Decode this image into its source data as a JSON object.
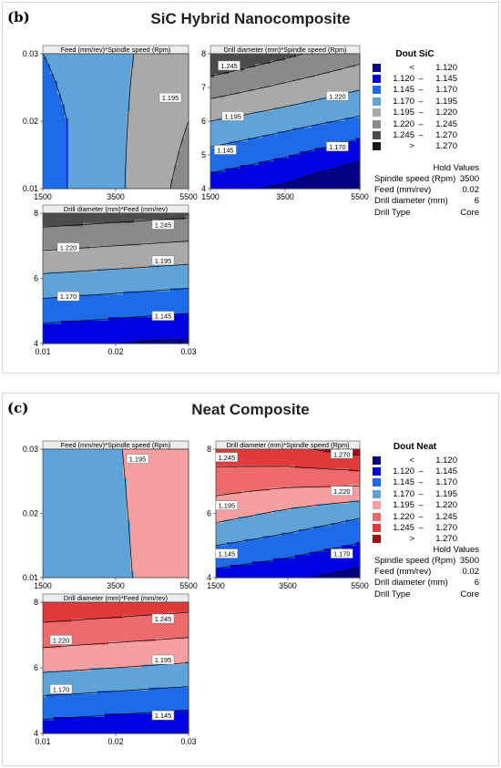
{
  "panels": [
    {
      "letter": "(b)",
      "title": "SiC Hybrid Nanocomposite",
      "legend": {
        "title": "Dout SiC",
        "rows": [
          {
            "lo": "<",
            "hi": "1.120",
            "color": "#000080"
          },
          {
            "lo": "1.120",
            "hi": "1.145",
            "color": "#0000e0"
          },
          {
            "lo": "1.145",
            "hi": "1.170",
            "color": "#1e6be8"
          },
          {
            "lo": "1.170",
            "hi": "1.195",
            "color": "#5fa3d9"
          },
          {
            "lo": "1.195",
            "hi": "1.220",
            "color": "#a9a9a9"
          },
          {
            "lo": "1.220",
            "hi": "1.245",
            "color": "#8a8a8a"
          },
          {
            "lo": "1.245",
            "hi": "1.270",
            "color": "#4d4d4d"
          },
          {
            "lo": ">",
            "hi": "1.270",
            "color": "#1a1a1a"
          }
        ]
      },
      "hold": {
        "title": "Hold Values",
        "rows": [
          {
            "label": "Spindle speed (Rpm)",
            "value": "3500"
          },
          {
            "label": "Feed (mm/rev)",
            "value": "0.02"
          },
          {
            "label": "Drill diameter (mm)",
            "value": "6"
          },
          {
            "label": "Drill Type",
            "value": "Core"
          }
        ]
      }
    },
    {
      "letter": "(c)",
      "title": "Neat Composite",
      "legend": {
        "title": "Dout Neat",
        "rows": [
          {
            "lo": "<",
            "hi": "1.120",
            "color": "#000080"
          },
          {
            "lo": "1.120",
            "hi": "1.145",
            "color": "#0000e0"
          },
          {
            "lo": "1.145",
            "hi": "1.170",
            "color": "#1e6be8"
          },
          {
            "lo": "1.170",
            "hi": "1.195",
            "color": "#5fa3d9"
          },
          {
            "lo": "1.195",
            "hi": "1.220",
            "color": "#f5a0a0"
          },
          {
            "lo": "1.220",
            "hi": "1.245",
            "color": "#ee6b6b"
          },
          {
            "lo": "1.245",
            "hi": "1.270",
            "color": "#e03a3a"
          },
          {
            "lo": ">",
            "hi": "1.270",
            "color": "#a01010"
          }
        ]
      },
      "hold": {
        "title": "Hold Values",
        "rows": [
          {
            "label": "Spindle speed (Rpm)",
            "value": "3500"
          },
          {
            "label": "Feed (mm/rev)",
            "value": "0.02"
          },
          {
            "label": "Drill diameter (mm)",
            "value": "6"
          },
          {
            "label": "Drill Type",
            "value": "Core"
          }
        ]
      }
    }
  ],
  "chart_data": [
    {
      "type": "contour",
      "panel": "b",
      "title": "Feed (mm/rev)*Spindle speed (Rpm)",
      "x": {
        "range": [
          1500,
          5500
        ],
        "ticks": [
          "1500",
          "3500",
          "5500"
        ]
      },
      "y": {
        "range": [
          0.01,
          0.03
        ],
        "ticks": [
          "0.01",
          "0.02",
          "0.03"
        ]
      },
      "levels": [
        1.12,
        1.145,
        1.17,
        1.195,
        1.22,
        1.245,
        1.27
      ],
      "colors": [
        "#000080",
        "#0000e0",
        "#1e6be8",
        "#5fa3d9",
        "#a9a9a9",
        "#8a8a8a",
        "#4d4d4d",
        "#1a1a1a"
      ],
      "z": [
        [
          1.16,
          1.19,
          1.23
        ],
        [
          1.16,
          1.19,
          1.22
        ],
        [
          1.17,
          1.19,
          1.21
        ]
      ],
      "contour_labels": [
        {
          "text": "1.195",
          "x": 5000,
          "y": 0.0235
        }
      ]
    },
    {
      "type": "contour",
      "panel": "b",
      "title": "Drill diameter (mm)*Spindle speed (Rpm)",
      "x": {
        "range": [
          1500,
          5500
        ],
        "ticks": [
          "1500",
          "3500",
          "5500"
        ]
      },
      "y": {
        "range": [
          4,
          8
        ],
        "ticks": [
          "4",
          "5",
          "6",
          "7",
          "8"
        ]
      },
      "levels": [
        1.12,
        1.145,
        1.17,
        1.195,
        1.22,
        1.245,
        1.27
      ],
      "colors": [
        "#000080",
        "#0000e0",
        "#1e6be8",
        "#5fa3d9",
        "#a9a9a9",
        "#8a8a8a",
        "#4d4d4d",
        "#1a1a1a"
      ],
      "z": [
        [
          1.13,
          1.115,
          1.09
        ],
        [
          1.195,
          1.18,
          1.165
        ],
        [
          1.27,
          1.25,
          1.23
        ]
      ],
      "contour_labels": [
        {
          "text": "1.245",
          "x": 2000,
          "y": 7.65
        },
        {
          "text": "1.220",
          "x": 4900,
          "y": 6.75
        },
        {
          "text": "1.195",
          "x": 2100,
          "y": 6.15
        },
        {
          "text": "1.170",
          "x": 4900,
          "y": 5.25
        },
        {
          "text": "1.145",
          "x": 1900,
          "y": 5.15
        }
      ]
    },
    {
      "type": "contour",
      "panel": "b",
      "title": "Drill diameter (mm)*Feed (mm/rev)",
      "x": {
        "range": [
          0.01,
          0.03
        ],
        "ticks": [
          "0.01",
          "0.02",
          "0.03"
        ]
      },
      "y": {
        "range": [
          4,
          8
        ],
        "ticks": [
          "4",
          "6",
          "8"
        ]
      },
      "levels": [
        1.12,
        1.145,
        1.17,
        1.195,
        1.22,
        1.245,
        1.27
      ],
      "colors": [
        "#000080",
        "#0000e0",
        "#1e6be8",
        "#5fa3d9",
        "#a9a9a9",
        "#8a8a8a",
        "#4d4d4d",
        "#1a1a1a"
      ],
      "z": [
        [
          1.125,
          1.12,
          1.115
        ],
        [
          1.19,
          1.185,
          1.18
        ],
        [
          1.26,
          1.255,
          1.25
        ]
      ],
      "contour_labels": [
        {
          "text": "1.245",
          "x": 0.0265,
          "y": 7.65
        },
        {
          "text": "1.220",
          "x": 0.0135,
          "y": 6.95
        },
        {
          "text": "1.195",
          "x": 0.0265,
          "y": 6.55
        },
        {
          "text": "1.170",
          "x": 0.0135,
          "y": 5.45
        },
        {
          "text": "1.145",
          "x": 0.0265,
          "y": 4.85
        }
      ]
    },
    {
      "type": "contour",
      "panel": "c",
      "title": "Feed (mm/rev)*Spindle speed (Rpm)",
      "x": {
        "range": [
          1500,
          5500
        ],
        "ticks": [
          "1500",
          "3500",
          "5500"
        ]
      },
      "y": {
        "range": [
          0.01,
          0.03
        ],
        "ticks": [
          "0.01",
          "0.02",
          "0.03"
        ]
      },
      "levels": [
        1.12,
        1.145,
        1.17,
        1.195,
        1.22,
        1.245,
        1.27
      ],
      "colors": [
        "#000080",
        "#0000e0",
        "#1e6be8",
        "#5fa3d9",
        "#f5a0a0",
        "#ee6b6b",
        "#e03a3a",
        "#a01010"
      ],
      "z": [
        [
          1.185,
          1.192,
          1.205
        ],
        [
          1.185,
          1.193,
          1.205
        ],
        [
          1.185,
          1.194,
          1.205
        ]
      ],
      "contour_labels": [
        {
          "text": "1.195",
          "x": 4100,
          "y": 0.0285
        }
      ]
    },
    {
      "type": "contour",
      "panel": "c",
      "title": "Drill diameter (mm)*Spindle speed (Rpm)",
      "x": {
        "range": [
          1500,
          5500
        ],
        "ticks": [
          "1500",
          "3500",
          "5500"
        ]
      },
      "y": {
        "range": [
          4,
          8
        ],
        "ticks": [
          "4",
          "6",
          "8"
        ]
      },
      "levels": [
        1.12,
        1.145,
        1.17,
        1.195,
        1.22,
        1.245,
        1.27
      ],
      "colors": [
        "#000080",
        "#0000e0",
        "#1e6be8",
        "#5fa3d9",
        "#f5a0a0",
        "#ee6b6b",
        "#e03a3a",
        "#a01010"
      ],
      "z": [
        [
          1.135,
          1.125,
          1.11
        ],
        [
          1.205,
          1.19,
          1.175
        ],
        [
          1.26,
          1.265,
          1.28
        ]
      ],
      "contour_labels": [
        {
          "text": "1.270",
          "x": 5000,
          "y": 7.85
        },
        {
          "text": "1.245",
          "x": 1800,
          "y": 7.75
        },
        {
          "text": "1.220",
          "x": 5000,
          "y": 6.7
        },
        {
          "text": "1.195",
          "x": 1800,
          "y": 6.25
        },
        {
          "text": "1.170",
          "x": 5000,
          "y": 4.75
        },
        {
          "text": "1.145",
          "x": 1800,
          "y": 4.75
        }
      ]
    },
    {
      "type": "contour",
      "panel": "c",
      "title": "Drill diameter (mm)*Feed (mm/rev)",
      "x": {
        "range": [
          0.01,
          0.03
        ],
        "ticks": [
          "0.01",
          "0.02",
          "0.03"
        ]
      },
      "y": {
        "range": [
          4,
          8
        ],
        "ticks": [
          "4",
          "6",
          "8"
        ]
      },
      "levels": [
        1.12,
        1.145,
        1.17,
        1.195,
        1.22,
        1.245,
        1.27
      ],
      "colors": [
        "#000080",
        "#0000e0",
        "#1e6be8",
        "#5fa3d9",
        "#f5a0a0",
        "#ee6b6b",
        "#e03a3a",
        "#a01010"
      ],
      "z": [
        [
          1.13,
          1.125,
          1.12
        ],
        [
          1.2,
          1.195,
          1.19
        ],
        [
          1.265,
          1.26,
          1.255
        ]
      ],
      "contour_labels": [
        {
          "text": "1.245",
          "x": 0.0265,
          "y": 7.5
        },
        {
          "text": "1.220",
          "x": 0.0125,
          "y": 6.85
        },
        {
          "text": "1.195",
          "x": 0.0265,
          "y": 6.25
        },
        {
          "text": "1.170",
          "x": 0.0125,
          "y": 5.35
        },
        {
          "text": "1.145",
          "x": 0.0265,
          "y": 4.55
        }
      ]
    }
  ]
}
